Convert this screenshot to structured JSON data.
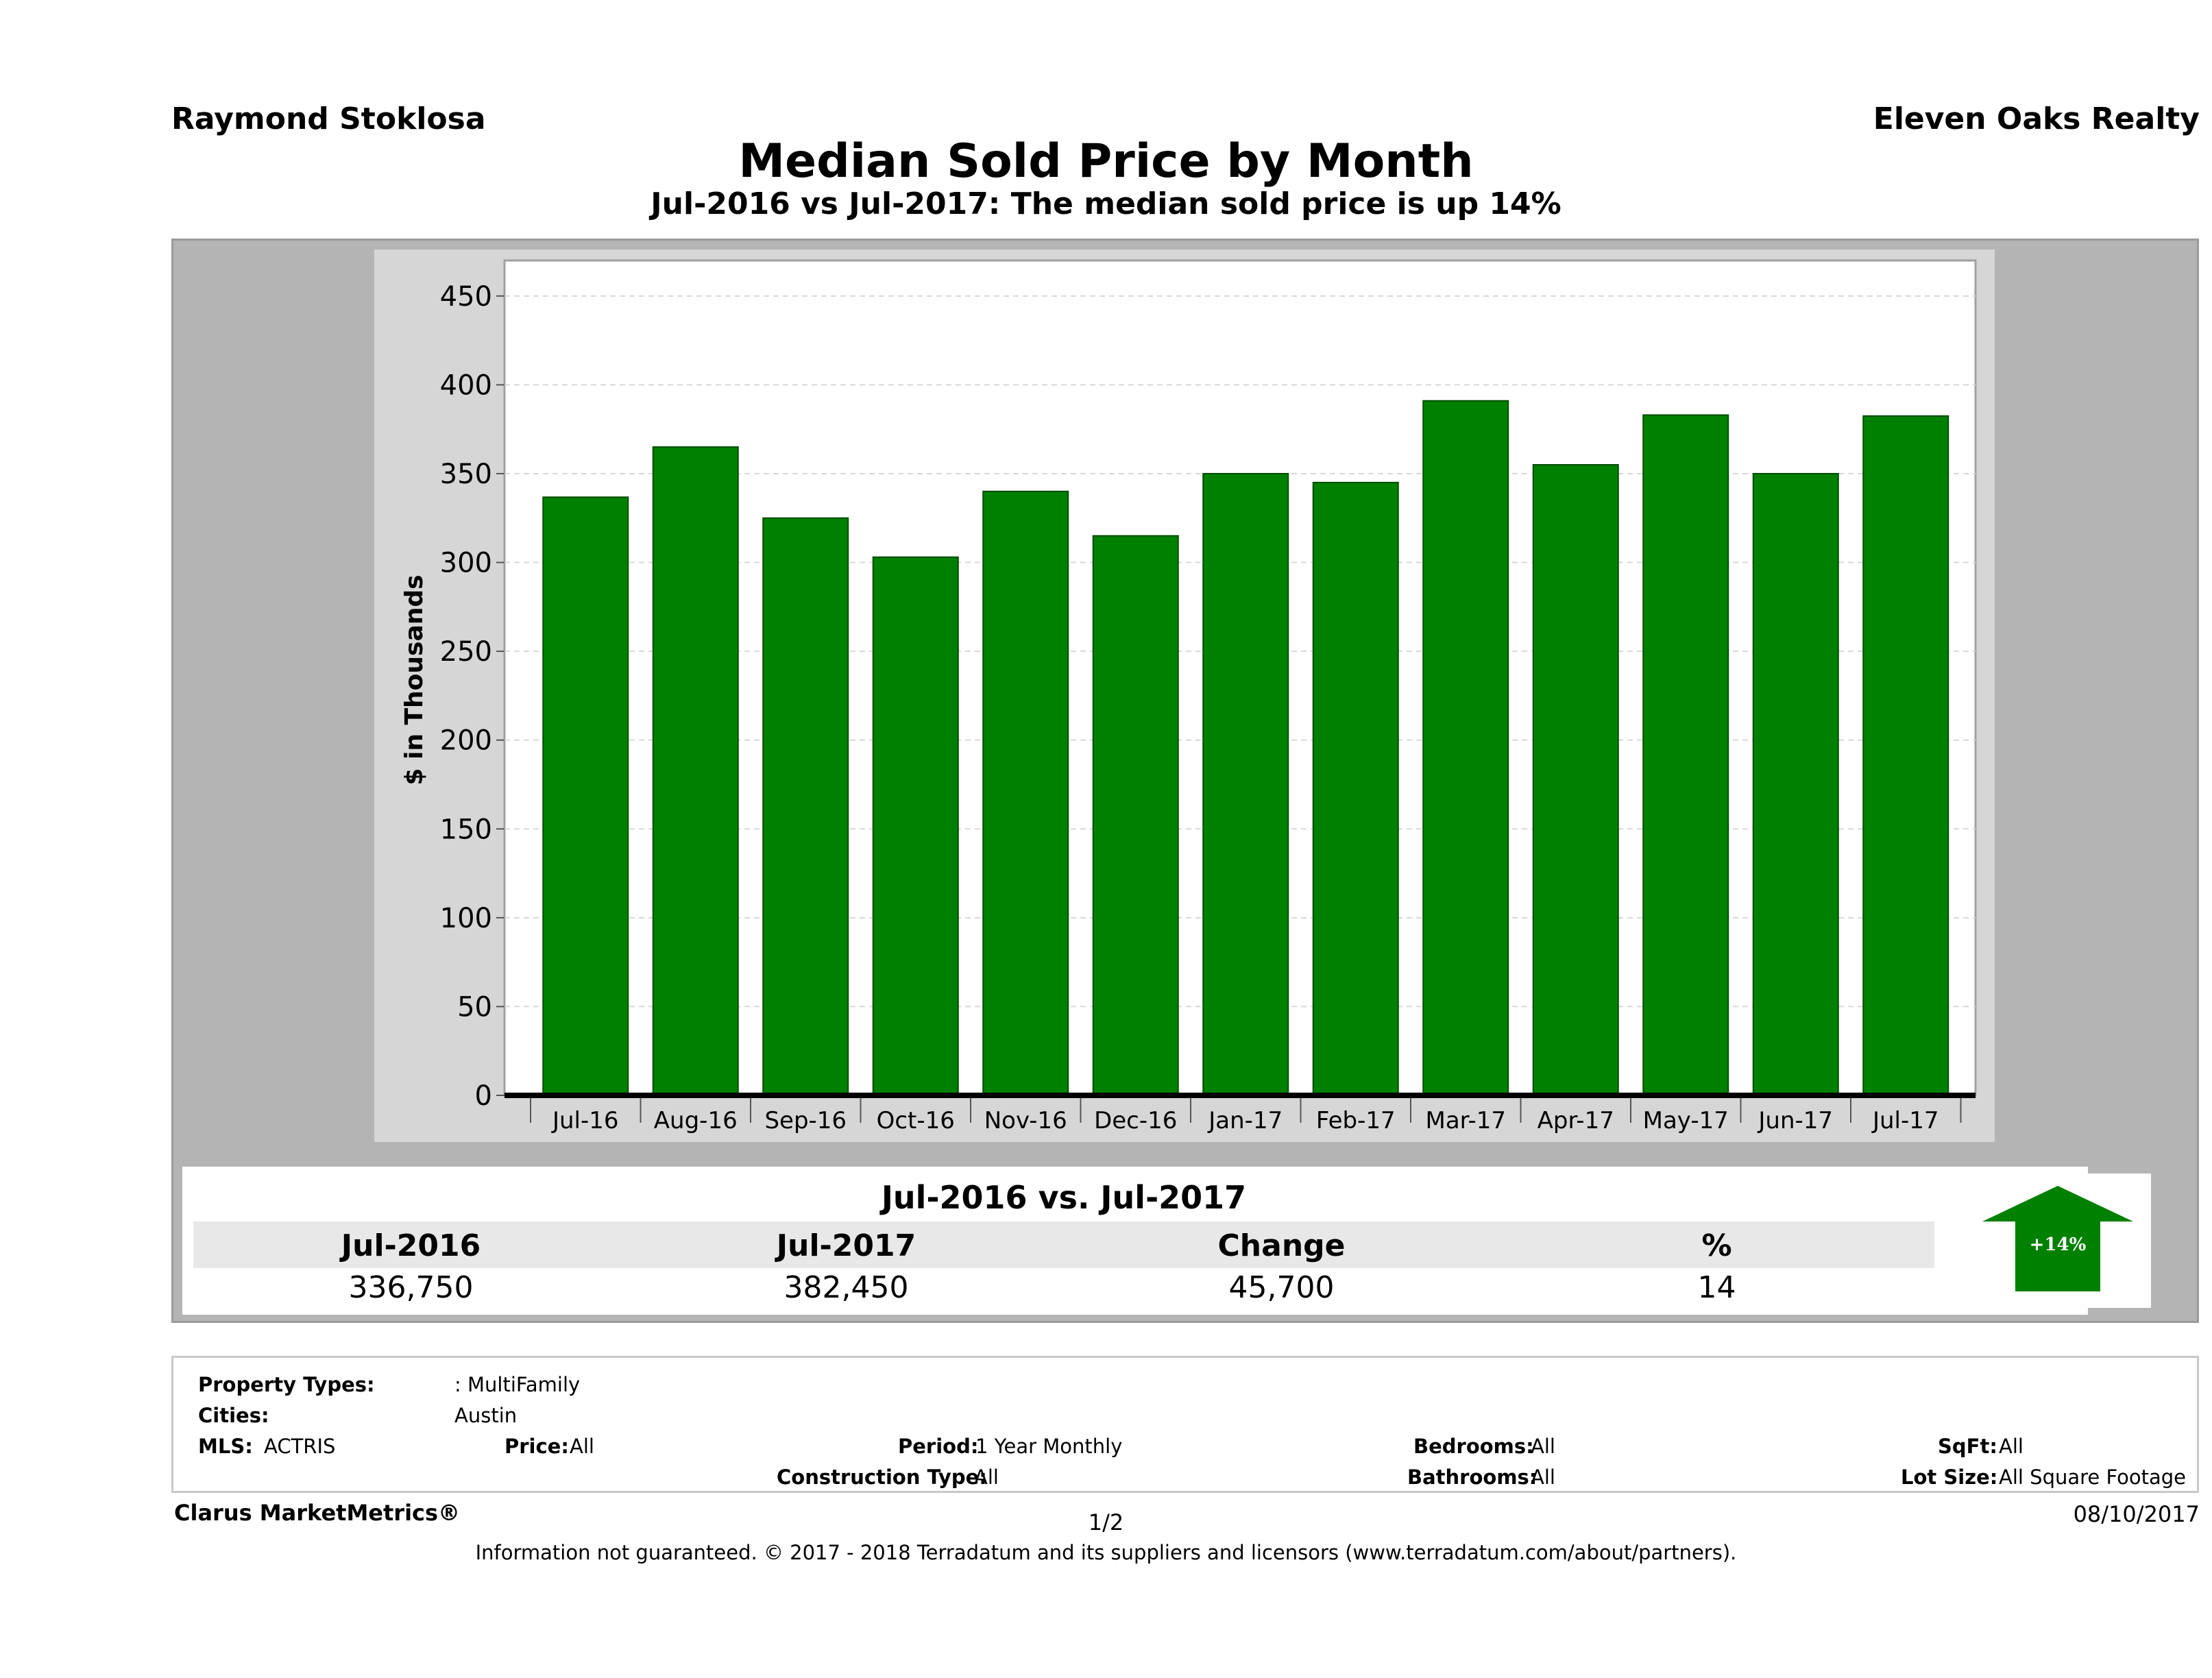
{
  "header": {
    "agent_name": "Raymond Stoklosa",
    "brokerage": "Eleven Oaks Realty",
    "title": "Median Sold Price by Month",
    "subtitle": "Jul-2016 vs Jul-2017: The median sold price is up 14%"
  },
  "chart_data": {
    "type": "bar",
    "categories": [
      "Jul-16",
      "Aug-16",
      "Sep-16",
      "Oct-16",
      "Nov-16",
      "Dec-16",
      "Jan-17",
      "Feb-17",
      "Mar-17",
      "Apr-17",
      "May-17",
      "Jun-17",
      "Jul-17"
    ],
    "values": [
      336.75,
      365,
      325,
      303,
      340,
      315,
      350,
      345,
      391,
      355,
      383,
      350,
      382.45
    ],
    "ylabel": "$ in Thousands",
    "xlabel": "",
    "ylim": [
      0,
      470
    ],
    "yticks": [
      0,
      50,
      100,
      150,
      200,
      250,
      300,
      350,
      400,
      450
    ],
    "grid": true,
    "bar_color": "#008000"
  },
  "summary": {
    "title": "Jul-2016 vs. Jul-2017",
    "headers": [
      "Jul-2016",
      "Jul-2017",
      "Change",
      "%"
    ],
    "values": [
      "336,750",
      "382,450",
      "45,700",
      "14"
    ],
    "badge": "+14%",
    "badge_color": "#008000"
  },
  "filters": {
    "property_types_label": "Property Types:",
    "property_types_value": ": MultiFamily",
    "cities_label": "Cities:",
    "cities_value": "Austin",
    "mls_label": "MLS:",
    "mls_value": "ACTRIS",
    "price_label": "Price:",
    "price_value": "All",
    "period_label": "Period:",
    "period_value": "1 Year Monthly",
    "bedrooms_label": "Bedrooms:",
    "bedrooms_value": "All",
    "sqft_label": "SqFt:",
    "sqft_value": "All",
    "construction_label": "Construction Type:",
    "construction_value": "All",
    "bathrooms_label": "Bathrooms:",
    "bathrooms_value": "All",
    "lotsize_label": "Lot Size:",
    "lotsize_value": "All Square Footage"
  },
  "footer": {
    "brand": "Clarus MarketMetrics®",
    "page": "1/2",
    "date": "08/10/2017",
    "disclaimer": "Information not guaranteed. © 2017 - 2018 Terradatum and its suppliers and licensors (www.terradatum.com/about/partners)."
  }
}
